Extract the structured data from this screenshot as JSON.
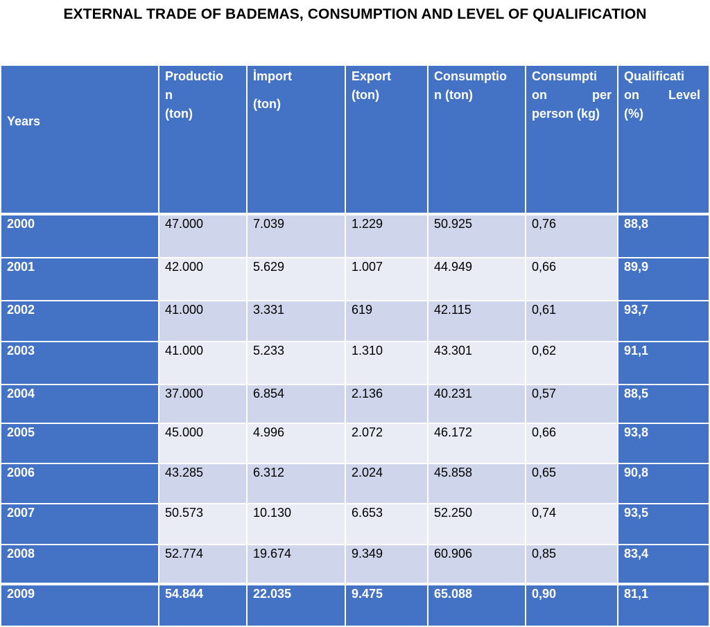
{
  "title": "EXTERNAL TRADE OF BADEMAS, CONSUMPTION AND LEVEL OF QUALIFICATION",
  "headers": {
    "years": "Years",
    "production": [
      "Productio",
      "n",
      "(ton)"
    ],
    "import": [
      "İmport",
      "(ton)"
    ],
    "export": [
      "Export",
      "(ton)"
    ],
    "consumption": [
      "Consumptio",
      "n (ton)"
    ],
    "consumption_per_person": [
      "Consumpti",
      "on per",
      "person (kg)"
    ],
    "qualification": [
      "Qualificati",
      "on Level",
      "(%)"
    ]
  },
  "rows": [
    [
      "2000",
      "47.000",
      "7.039",
      "1.229",
      "50.925",
      "0,76",
      "88,8"
    ],
    [
      "2001",
      "42.000",
      "5.629",
      "1.007",
      "44.949",
      "0,66",
      "89,9"
    ],
    [
      "2002",
      "41.000",
      "3.331",
      "619",
      "42.115",
      "0,61",
      "93,7"
    ],
    [
      "2003",
      "41.000",
      "5.233",
      "1.310",
      "43.301",
      "0,62",
      "91,1"
    ],
    [
      "2004",
      "37.000",
      "6.854",
      "2.136",
      "40.231",
      "0,57",
      "88,5"
    ],
    [
      "2005",
      "45.000",
      "4.996",
      "2.072",
      "46.172",
      "0,66",
      "93,8"
    ],
    [
      "2006",
      "43.285",
      "6.312",
      "2.024",
      "45.858",
      "0,65",
      "90,8"
    ],
    [
      "2007",
      "50.573",
      "10.130",
      "6.653",
      "52.250",
      "0,74",
      "93,5"
    ],
    [
      "2008",
      "52.774",
      "19.674",
      "9.349",
      "60.906",
      "0,85",
      "83,4"
    ],
    [
      "2009",
      "54.844",
      "22.035",
      "9.475",
      "65.088",
      "0,90",
      "81,1"
    ]
  ],
  "colors": {
    "header_blue": "#4472c4",
    "band_dark": "#cfd5ea",
    "band_light": "#e9ebf5"
  }
}
